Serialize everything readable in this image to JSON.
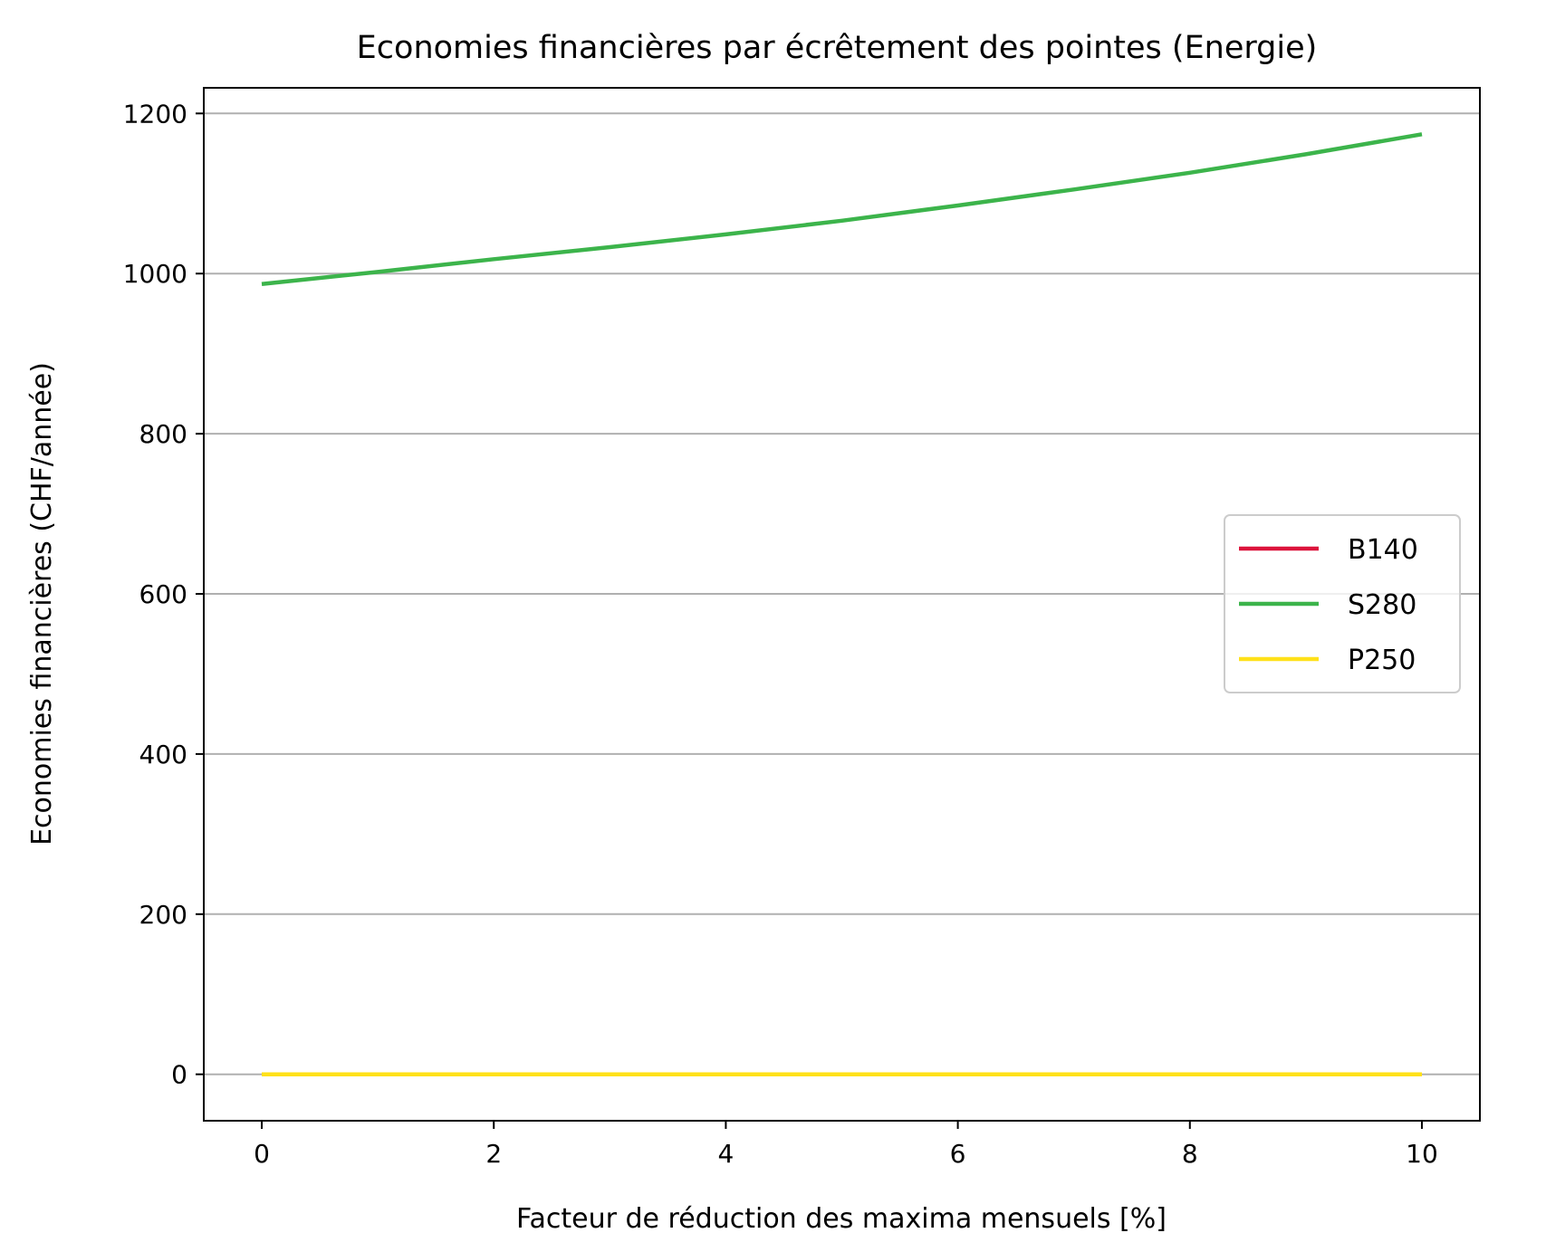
{
  "chart_data": {
    "type": "line",
    "title": "Economies financières par écrêtement des pointes (Energie)",
    "xlabel": "Facteur de réduction des maxima mensuels [%]",
    "ylabel": "Economies financières (CHF/année)",
    "xlim": [
      -0.5,
      10.5
    ],
    "ylim": [
      -58,
      1232
    ],
    "xticks": [
      0,
      2,
      4,
      6,
      8,
      10
    ],
    "yticks": [
      0,
      200,
      400,
      600,
      800,
      1000,
      1200
    ],
    "grid": "horizontal",
    "legend_position": "center-right",
    "x": [
      0,
      1,
      2,
      3,
      4,
      5,
      6,
      7,
      8,
      9,
      10
    ],
    "series": [
      {
        "name": "B140",
        "color": "#dc143c",
        "values": [
          0,
          0,
          0,
          0,
          0,
          0,
          0,
          0,
          0,
          0,
          0
        ]
      },
      {
        "name": "S280",
        "color": "#3cb44b",
        "values": [
          987,
          1002,
          1018,
          1033,
          1049,
          1066,
          1085,
          1105,
          1126,
          1149,
          1174
        ]
      },
      {
        "name": "P250",
        "color": "#ffe119",
        "values": [
          0,
          0,
          0,
          0,
          0,
          0,
          0,
          0,
          0,
          0,
          0
        ]
      }
    ]
  }
}
